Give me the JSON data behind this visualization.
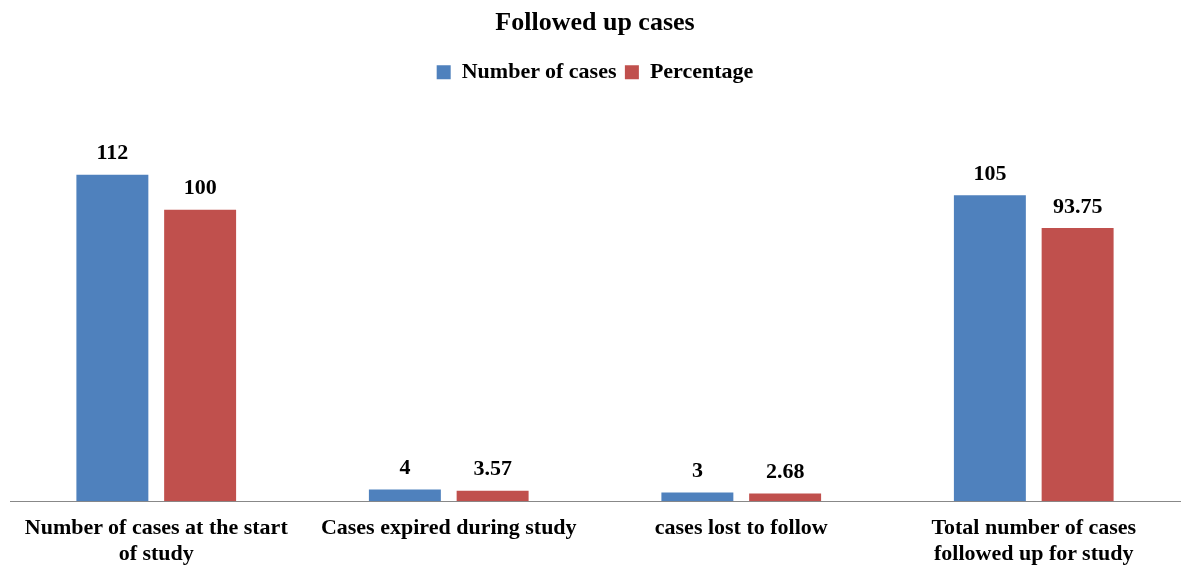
{
  "chart_data": {
    "type": "bar",
    "title": "Followed up cases",
    "categories": [
      "Number of cases at the start of study",
      "Cases expired during study",
      "cases lost to follow",
      "Total number of cases followed up for study"
    ],
    "series": [
      {
        "name": "Number of cases",
        "color": "#4f81bd",
        "values": [
          112,
          4,
          3,
          105
        ]
      },
      {
        "name": "Percentage",
        "color": "#c0504d",
        "values": [
          100,
          3.57,
          2.68,
          93.75
        ]
      }
    ],
    "data_labels": true,
    "legend": "top",
    "grid": false
  }
}
